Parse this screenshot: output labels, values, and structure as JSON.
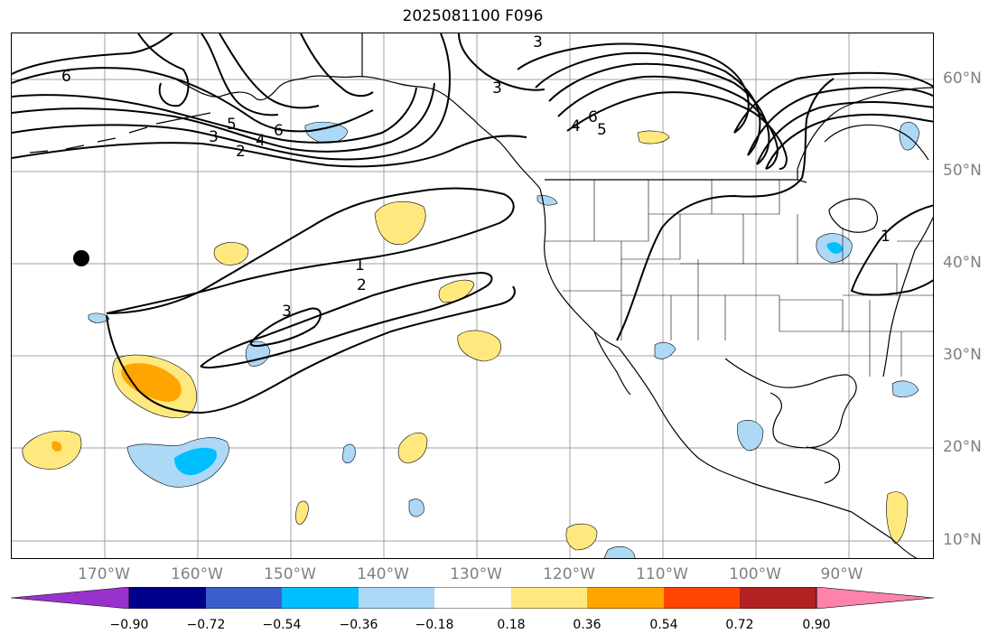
{
  "title": "2025081100 F096",
  "latitude_labels": [
    "60°N",
    "50°N",
    "40°N",
    "30°N",
    "20°N",
    "10°N"
  ],
  "longitude_labels": [
    "170°W",
    "160°W",
    "150°W",
    "140°W",
    "130°W",
    "120°W",
    "110°W",
    "100°W",
    "90°W"
  ],
  "contour_labels": [
    "6",
    "5",
    "6",
    "4",
    "3",
    "2",
    "3",
    "3",
    "6",
    "5",
    "4",
    "1",
    "2",
    "3",
    "1"
  ],
  "marker": "filled-black-dot",
  "colorbar": {
    "tick_labels": [
      "−0.90",
      "−0.72",
      "−0.54",
      "−0.36",
      "−0.18",
      "0.18",
      "0.36",
      "0.54",
      "0.72",
      "0.90"
    ],
    "colors": [
      "#9932cc",
      "#00008b",
      "#3a5fcd",
      "#00bfff",
      "#add8f6",
      "#ffffff",
      "#ffe97f",
      "#ffa500",
      "#ff4500",
      "#b22222",
      "#ff82ab"
    ]
  }
}
